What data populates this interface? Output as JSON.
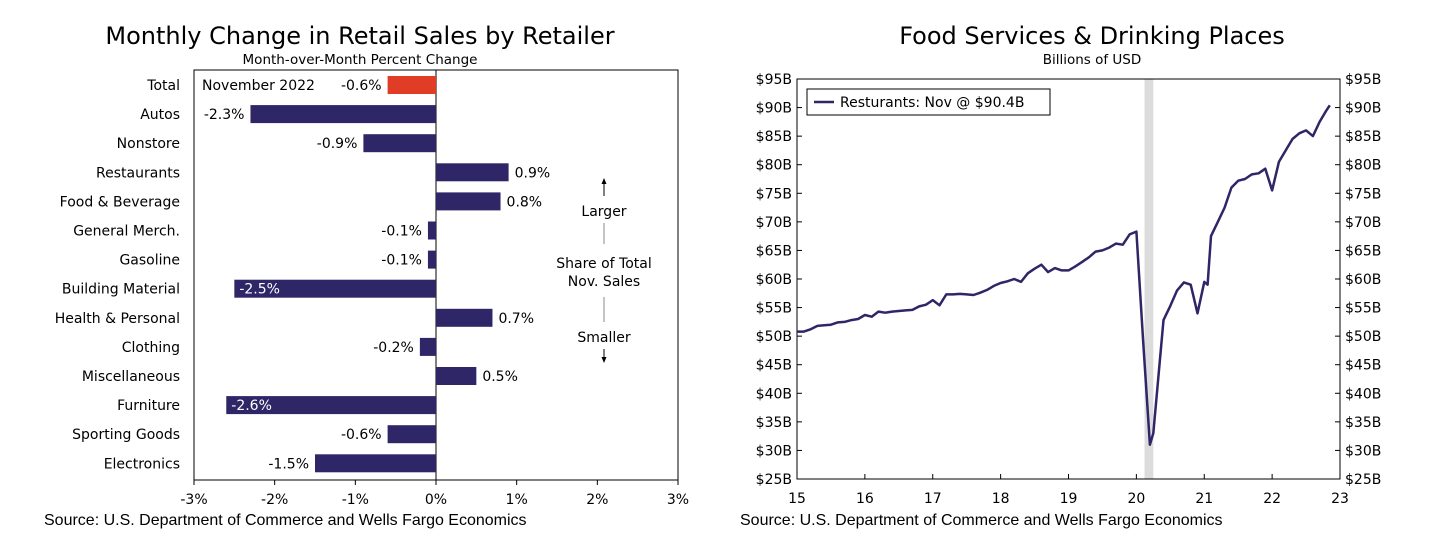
{
  "left_chart": {
    "title": "Monthly Change in Retail Sales by Retailer",
    "subtitle": "Month-over-Month Percent Change",
    "legend_label": "November 2022",
    "annotation": {
      "top_label": "Larger",
      "middle_label_1": "Share of Total",
      "middle_label_2": "Nov. Sales",
      "bottom_label": "Smaller"
    },
    "source": "Source: U.S. Department of Commerce and Wells Fargo Economics"
  },
  "right_chart": {
    "title": "Food Services & Drinking Places",
    "subtitle": "Billions of USD",
    "legend_label": "Resturants: Nov @ $90.4B",
    "source": "Source: U.S. Department of Commerce and Wells Fargo Economics"
  },
  "colors": {
    "bar_primary": "#2e2667",
    "bar_highlight": "#e03c26",
    "line": "#2e2667",
    "recession_band": "#dcdcdc",
    "axis": "#000000"
  },
  "chart_data": [
    {
      "type": "bar",
      "orientation": "horizontal",
      "title": "Monthly Change in Retail Sales by Retailer",
      "subtitle": "Month-over-Month Percent Change",
      "categories": [
        "Total",
        "Autos",
        "Nonstore",
        "Restaurants",
        "Food & Beverage",
        "General Merch.",
        "Gasoline",
        "Building Material",
        "Health & Personal",
        "Clothing",
        "Miscellaneous",
        "Furniture",
        "Sporting Goods",
        "Electronics"
      ],
      "values": [
        -0.6,
        -2.3,
        -0.9,
        0.9,
        0.8,
        -0.1,
        -0.1,
        -2.5,
        0.7,
        -0.2,
        0.5,
        -2.6,
        -0.6,
        -1.5
      ],
      "value_labels": [
        "-0.6%",
        "-2.3%",
        "-0.9%",
        "0.9%",
        "0.8%",
        "-0.1%",
        "-0.1%",
        "-2.5%",
        "0.7%",
        "-0.2%",
        "0.5%",
        "-2.6%",
        "-0.6%",
        "-1.5%"
      ],
      "highlight_index": 0,
      "xlim": [
        -3,
        3
      ],
      "x_ticks": [
        -3,
        -2,
        -1,
        0,
        1,
        2,
        3
      ],
      "x_tick_labels": [
        "-3%",
        "-2%",
        "-1%",
        "0%",
        "1%",
        "2%",
        "3%"
      ],
      "grid": false
    },
    {
      "type": "line",
      "title": "Food Services & Drinking Places",
      "subtitle": "Billions of USD",
      "series": [
        {
          "name": "Resturants: Nov @ $90.4B",
          "x": [
            15.0,
            15.1,
            15.2,
            15.3,
            15.4,
            15.5,
            15.6,
            15.7,
            15.8,
            15.9,
            16.0,
            16.1,
            16.2,
            16.3,
            16.4,
            16.5,
            16.6,
            16.7,
            16.8,
            16.9,
            17.0,
            17.1,
            17.2,
            17.3,
            17.4,
            17.5,
            17.6,
            17.7,
            17.8,
            17.9,
            18.0,
            18.1,
            18.2,
            18.3,
            18.4,
            18.5,
            18.6,
            18.7,
            18.8,
            18.9,
            19.0,
            19.1,
            19.2,
            19.3,
            19.4,
            19.5,
            19.6,
            19.7,
            19.8,
            19.9,
            20.0,
            20.1,
            20.2,
            20.25,
            20.4,
            20.5,
            20.6,
            20.7,
            20.8,
            20.9,
            21.0,
            21.05,
            21.1,
            21.2,
            21.3,
            21.4,
            21.5,
            21.6,
            21.7,
            21.8,
            21.9,
            22.0,
            22.1,
            22.2,
            22.3,
            22.4,
            22.5,
            22.6,
            22.7,
            22.8,
            22.85
          ],
          "y": [
            50.8,
            50.8,
            51.2,
            51.8,
            51.9,
            52.0,
            52.4,
            52.5,
            52.8,
            53.0,
            53.7,
            53.4,
            54.3,
            54.1,
            54.3,
            54.4,
            54.5,
            54.6,
            55.2,
            55.5,
            56.3,
            55.4,
            57.3,
            57.3,
            57.4,
            57.3,
            57.2,
            57.6,
            58.1,
            58.8,
            59.3,
            59.6,
            60.0,
            59.5,
            61.0,
            61.8,
            62.5,
            61.2,
            61.9,
            61.5,
            61.5,
            62.2,
            63.0,
            63.8,
            64.8,
            65.0,
            65.5,
            66.2,
            66.0,
            67.8,
            68.3,
            49.0,
            31.0,
            33.0,
            52.8,
            55.3,
            58.0,
            59.4,
            59.0,
            54.0,
            59.5,
            59.0,
            67.5,
            70.0,
            72.5,
            76.0,
            77.2,
            77.5,
            78.3,
            78.5,
            79.3,
            75.5,
            80.5,
            82.5,
            84.5,
            85.5,
            86.0,
            85.0,
            87.5,
            89.5,
            90.4
          ]
        }
      ],
      "recession_band": [
        20.12,
        20.25
      ],
      "xlim": [
        15,
        23
      ],
      "x_ticks": [
        15,
        16,
        17,
        18,
        19,
        20,
        21,
        22,
        23
      ],
      "x_tick_labels": [
        "15",
        "16",
        "17",
        "18",
        "19",
        "20",
        "21",
        "22",
        "23"
      ],
      "ylim": [
        25,
        95
      ],
      "y_ticks": [
        25,
        30,
        35,
        40,
        45,
        50,
        55,
        60,
        65,
        70,
        75,
        80,
        85,
        90,
        95
      ],
      "y_tick_labels": [
        "$25B",
        "$30B",
        "$35B",
        "$40B",
        "$45B",
        "$50B",
        "$55B",
        "$60B",
        "$65B",
        "$70B",
        "$75B",
        "$80B",
        "$85B",
        "$90B",
        "$95B"
      ],
      "grid": false
    }
  ]
}
